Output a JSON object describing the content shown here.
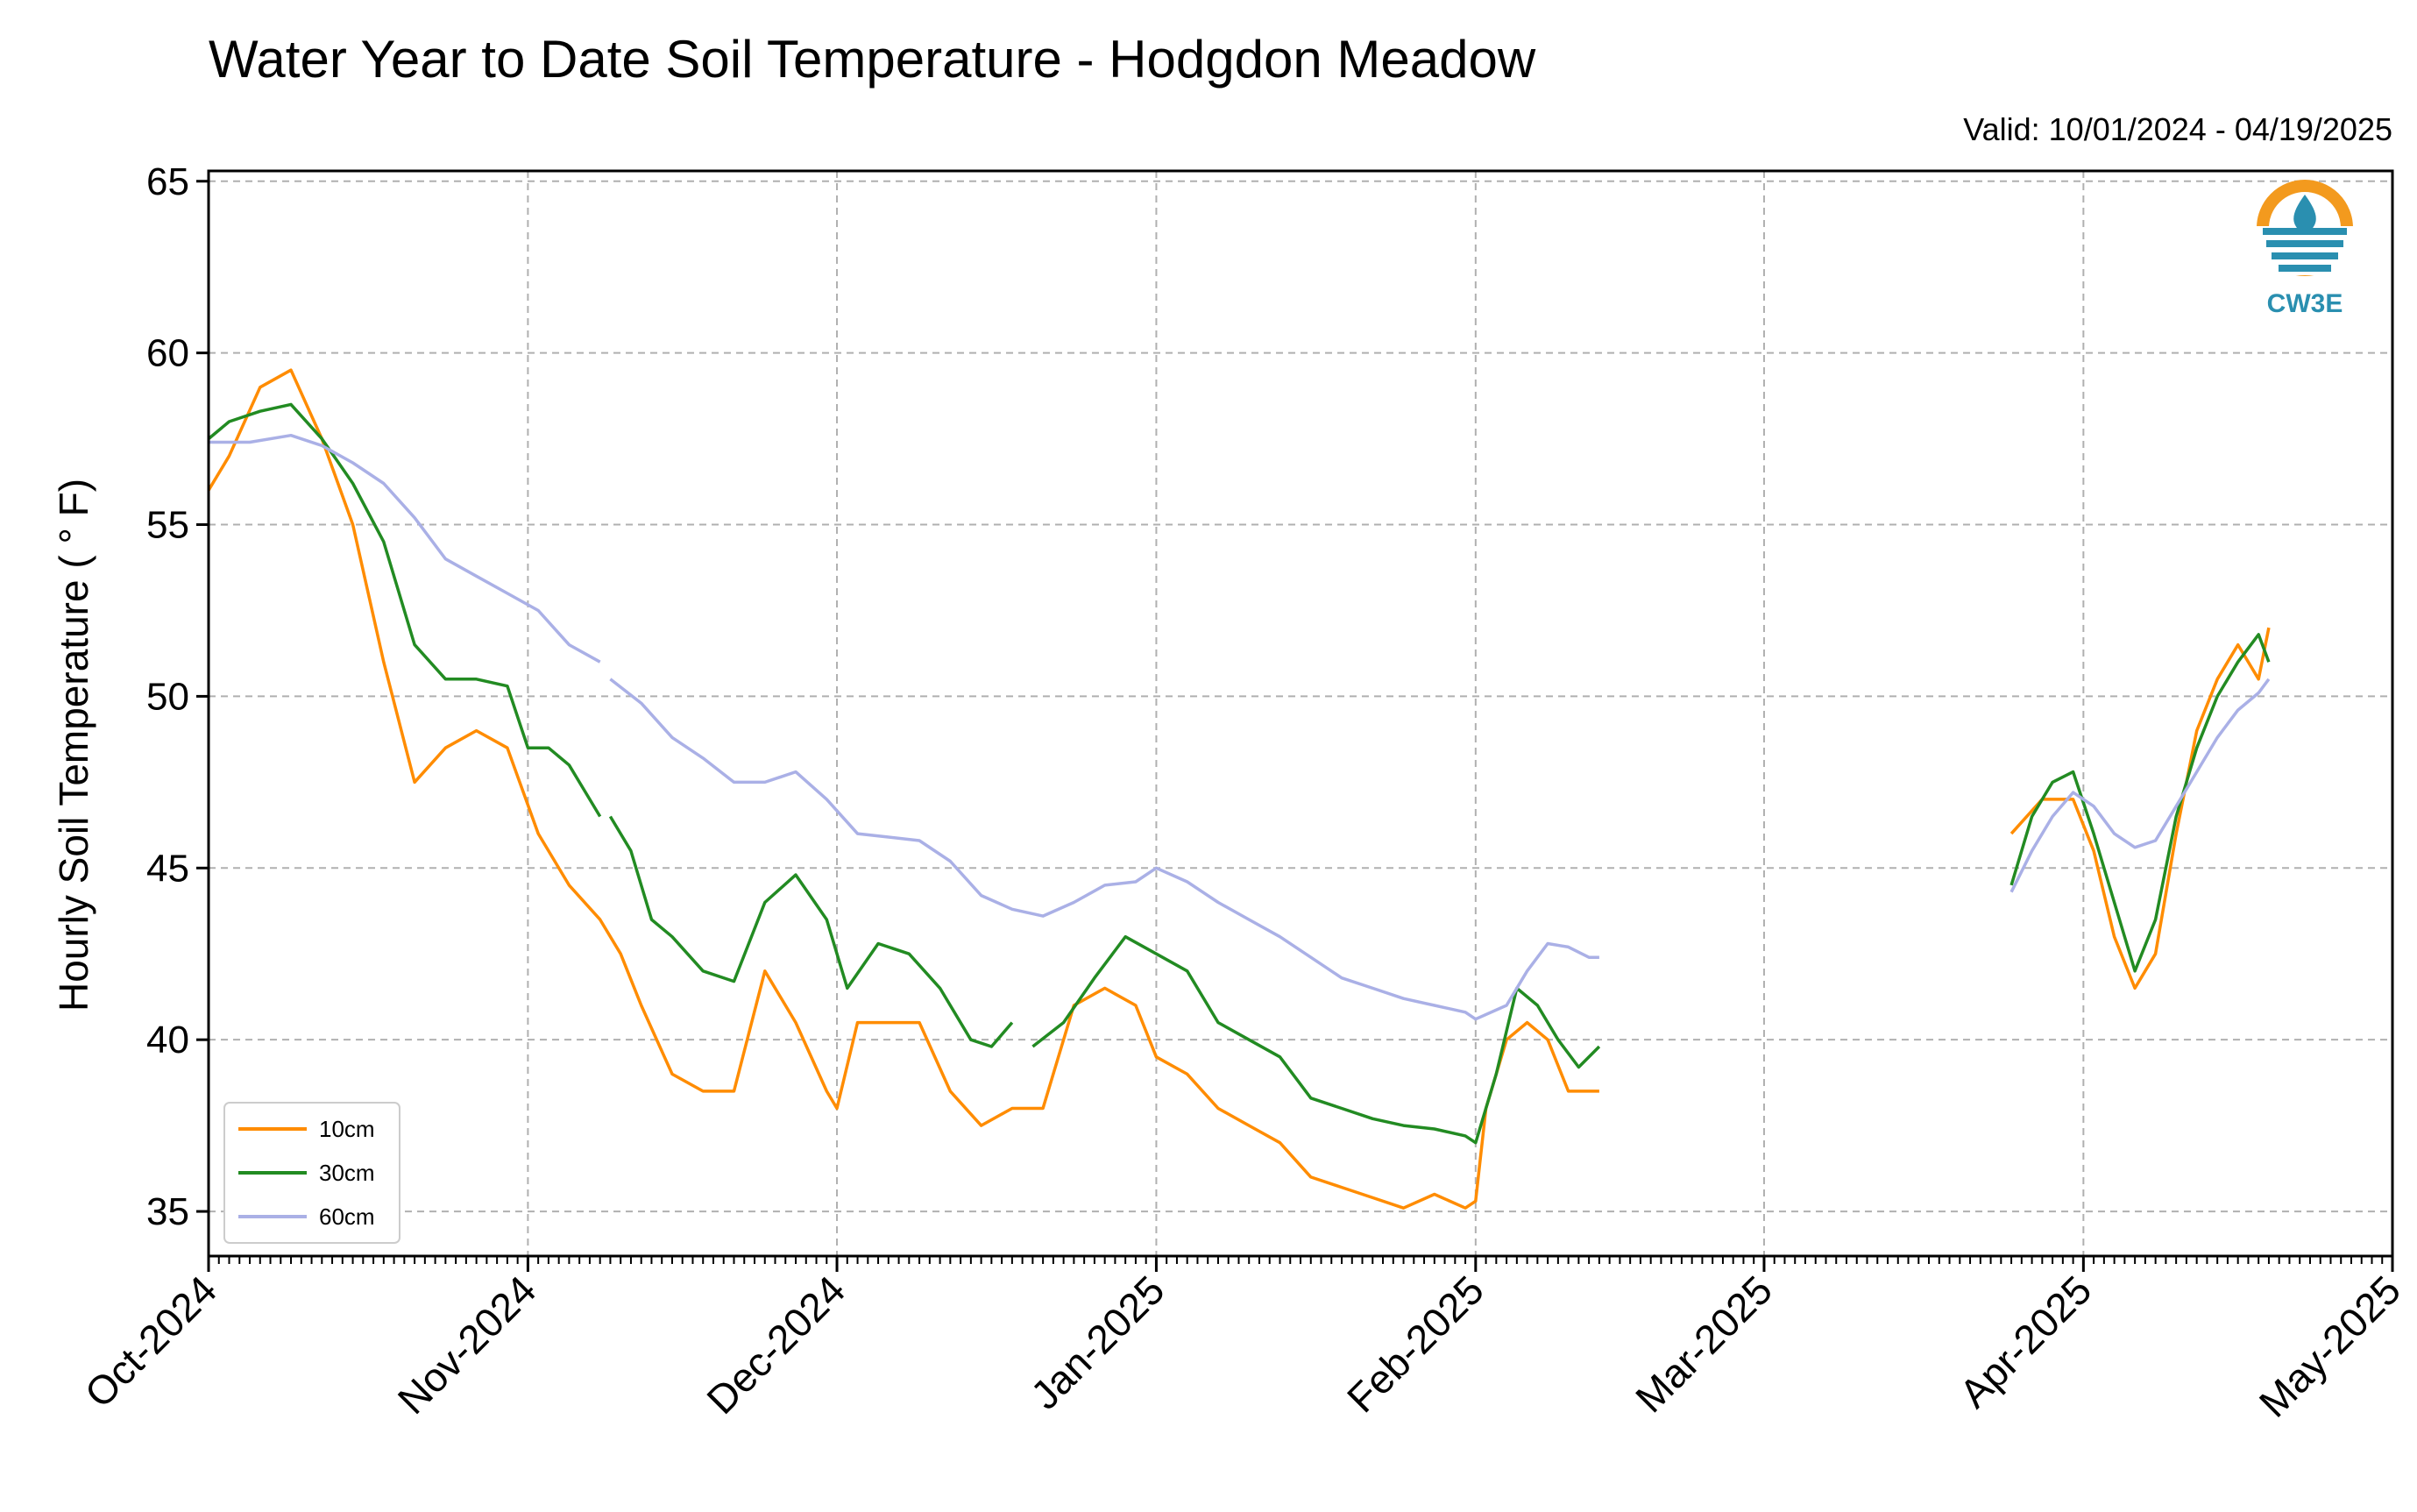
{
  "chart_data": {
    "type": "line",
    "title": "Water Year to Date Soil Temperature - Hodgdon Meadow",
    "subtitle": "Valid: 10/01/2024 - 04/19/2025",
    "ylabel": "Hourly Soil Temperature ( ° F)",
    "xlabel": "",
    "ylim": [
      33.7,
      65.3
    ],
    "xlim": [
      "2024-10-01",
      "2025-05-01"
    ],
    "yticks": [
      35,
      40,
      45,
      50,
      55,
      60,
      65
    ],
    "xticks": [
      {
        "date": "2024-10-01",
        "label": "Oct-2024"
      },
      {
        "date": "2024-11-01",
        "label": "Nov-2024"
      },
      {
        "date": "2024-12-01",
        "label": "Dec-2024"
      },
      {
        "date": "2025-01-01",
        "label": "Jan-2025"
      },
      {
        "date": "2025-02-01",
        "label": "Feb-2025"
      },
      {
        "date": "2025-03-01",
        "label": "Mar-2025"
      },
      {
        "date": "2025-04-01",
        "label": "Apr-2025"
      },
      {
        "date": "2025-05-01",
        "label": "May-2025"
      }
    ],
    "grid": true,
    "legend_position": "lower-left",
    "series": [
      {
        "name": "10cm",
        "color": "#ff8c00",
        "points": [
          [
            "2024-10-01",
            56
          ],
          [
            "2024-10-03",
            57
          ],
          [
            "2024-10-06",
            59
          ],
          [
            "2024-10-09",
            59.5
          ],
          [
            "2024-10-12",
            57.5
          ],
          [
            "2024-10-15",
            55
          ],
          [
            "2024-10-18",
            51
          ],
          [
            "2024-10-21",
            47.5
          ],
          [
            "2024-10-24",
            48.5
          ],
          [
            "2024-10-27",
            49
          ],
          [
            "2024-10-30",
            48.5
          ],
          [
            "2024-11-02",
            46
          ],
          [
            "2024-11-05",
            44.5
          ],
          [
            "2024-11-08",
            43.5
          ],
          [
            "2024-11-10",
            42.5
          ],
          [
            "2024-11-12",
            41
          ],
          [
            "2024-11-15",
            39
          ],
          [
            "2024-11-18",
            38.5
          ],
          [
            "2024-11-21",
            38.5
          ],
          [
            "2024-11-24",
            42
          ],
          [
            "2024-11-27",
            40.5
          ],
          [
            "2024-11-30",
            38.5
          ],
          [
            "2024-12-01",
            38
          ],
          [
            "2024-12-03",
            40.5
          ],
          [
            "2024-12-06",
            40.5
          ],
          [
            "2024-12-09",
            40.5
          ],
          [
            "2024-12-12",
            38.5
          ],
          [
            "2024-12-15",
            37.5
          ],
          [
            "2024-12-18",
            38
          ],
          [
            "2024-12-21",
            38
          ],
          [
            "2024-12-24",
            41
          ],
          [
            "2024-12-27",
            41.5
          ],
          [
            "2024-12-30",
            41
          ],
          [
            "2025-01-01",
            39.5
          ],
          [
            "2025-01-04",
            39
          ],
          [
            "2025-01-07",
            38
          ],
          [
            "2025-01-10",
            37.5
          ],
          [
            "2025-01-13",
            37
          ],
          [
            "2025-01-16",
            36
          ],
          [
            "2025-01-19",
            35.7
          ],
          [
            "2025-01-22",
            35.4
          ],
          [
            "2025-01-25",
            35.1
          ],
          [
            "2025-01-28",
            35.5
          ],
          [
            "2025-01-31",
            35.1
          ],
          [
            "2025-02-01",
            35.3
          ],
          [
            "2025-02-02",
            38
          ],
          [
            "2025-02-04",
            40
          ],
          [
            "2025-02-06",
            40.5
          ],
          [
            "2025-02-08",
            40
          ],
          [
            "2025-02-10",
            38.5
          ],
          [
            "2025-02-12",
            38.5
          ],
          [
            "2025-02-13",
            38.5
          ],
          null,
          [
            "2025-03-25",
            46
          ],
          [
            "2025-03-28",
            47
          ],
          [
            "2025-03-31",
            47
          ],
          [
            "2025-04-02",
            45.5
          ],
          [
            "2025-04-04",
            43
          ],
          [
            "2025-04-06",
            41.5
          ],
          [
            "2025-04-08",
            42.5
          ],
          [
            "2025-04-10",
            46
          ],
          [
            "2025-04-12",
            49
          ],
          [
            "2025-04-14",
            50.5
          ],
          [
            "2025-04-16",
            51.5
          ],
          [
            "2025-04-18",
            50.5
          ],
          [
            "2025-04-19",
            52
          ]
        ]
      },
      {
        "name": "30cm",
        "color": "#228b22",
        "points": [
          [
            "2024-10-01",
            57.5
          ],
          [
            "2024-10-03",
            58
          ],
          [
            "2024-10-06",
            58.3
          ],
          [
            "2024-10-09",
            58.5
          ],
          [
            "2024-10-12",
            57.5
          ],
          [
            "2024-10-15",
            56.2
          ],
          [
            "2024-10-18",
            54.5
          ],
          [
            "2024-10-21",
            51.5
          ],
          [
            "2024-10-24",
            50.5
          ],
          [
            "2024-10-27",
            50.5
          ],
          [
            "2024-10-30",
            50.3
          ],
          [
            "2024-11-01",
            48.5
          ],
          [
            "2024-11-03",
            48.5
          ],
          [
            "2024-11-05",
            48
          ],
          [
            "2024-11-07",
            47
          ],
          [
            "2024-11-08",
            46.5
          ],
          null,
          [
            "2024-11-09",
            46.5
          ],
          [
            "2024-11-11",
            45.5
          ],
          [
            "2024-11-13",
            43.5
          ],
          [
            "2024-11-15",
            43
          ],
          [
            "2024-11-18",
            42
          ],
          [
            "2024-11-21",
            41.7
          ],
          [
            "2024-11-24",
            44
          ],
          [
            "2024-11-27",
            44.8
          ],
          [
            "2024-11-30",
            43.5
          ],
          [
            "2024-12-02",
            41.5
          ],
          [
            "2024-12-05",
            42.8
          ],
          [
            "2024-12-08",
            42.5
          ],
          [
            "2024-12-11",
            41.5
          ],
          [
            "2024-12-14",
            40
          ],
          [
            "2024-12-16",
            39.8
          ],
          [
            "2024-12-18",
            40.5
          ],
          null,
          [
            "2024-12-20",
            39.8
          ],
          [
            "2024-12-23",
            40.5
          ],
          [
            "2024-12-26",
            41.8
          ],
          [
            "2024-12-29",
            43
          ],
          [
            "2025-01-01",
            42.5
          ],
          [
            "2025-01-04",
            42
          ],
          [
            "2025-01-07",
            40.5
          ],
          [
            "2025-01-10",
            40
          ],
          [
            "2025-01-13",
            39.5
          ],
          [
            "2025-01-16",
            38.3
          ],
          [
            "2025-01-19",
            38
          ],
          [
            "2025-01-22",
            37.7
          ],
          [
            "2025-01-25",
            37.5
          ],
          [
            "2025-01-28",
            37.4
          ],
          [
            "2025-01-31",
            37.2
          ],
          [
            "2025-02-01",
            37
          ],
          [
            "2025-02-03",
            39
          ],
          [
            "2025-02-05",
            41.5
          ],
          [
            "2025-02-07",
            41
          ],
          [
            "2025-02-09",
            40
          ],
          [
            "2025-02-11",
            39.2
          ],
          [
            "2025-02-13",
            39.8
          ],
          null,
          [
            "2025-03-25",
            44.5
          ],
          [
            "2025-03-27",
            46.5
          ],
          [
            "2025-03-29",
            47.5
          ],
          [
            "2025-03-31",
            47.8
          ],
          [
            "2025-04-02",
            46
          ],
          [
            "2025-04-04",
            44
          ],
          [
            "2025-04-06",
            42
          ],
          [
            "2025-04-08",
            43.5
          ],
          [
            "2025-04-10",
            46.5
          ],
          [
            "2025-04-12",
            48.5
          ],
          [
            "2025-04-14",
            50
          ],
          [
            "2025-04-16",
            51
          ],
          [
            "2025-04-18",
            51.8
          ],
          [
            "2025-04-19",
            51
          ]
        ]
      },
      {
        "name": "60cm",
        "color": "#aab0e6",
        "points": [
          [
            "2024-10-01",
            57.4
          ],
          [
            "2024-10-05",
            57.4
          ],
          [
            "2024-10-09",
            57.6
          ],
          [
            "2024-10-12",
            57.3
          ],
          [
            "2024-10-15",
            56.8
          ],
          [
            "2024-10-18",
            56.2
          ],
          [
            "2024-10-21",
            55.2
          ],
          [
            "2024-10-24",
            54
          ],
          [
            "2024-10-27",
            53.5
          ],
          [
            "2024-10-30",
            53
          ],
          [
            "2024-11-02",
            52.5
          ],
          [
            "2024-11-05",
            51.5
          ],
          [
            "2024-11-08",
            51
          ],
          null,
          [
            "2024-11-09",
            50.5
          ],
          [
            "2024-11-12",
            49.8
          ],
          [
            "2024-11-15",
            48.8
          ],
          [
            "2024-11-18",
            48.2
          ],
          [
            "2024-11-21",
            47.5
          ],
          [
            "2024-11-24",
            47.5
          ],
          [
            "2024-11-27",
            47.8
          ],
          [
            "2024-11-30",
            47
          ],
          [
            "2024-12-03",
            46
          ],
          [
            "2024-12-06",
            45.9
          ],
          [
            "2024-12-09",
            45.8
          ],
          [
            "2024-12-12",
            45.2
          ],
          [
            "2024-12-15",
            44.2
          ],
          [
            "2024-12-18",
            43.8
          ],
          [
            "2024-12-21",
            43.6
          ],
          [
            "2024-12-24",
            44
          ],
          [
            "2024-12-27",
            44.5
          ],
          [
            "2024-12-30",
            44.6
          ],
          [
            "2025-01-01",
            45
          ],
          [
            "2025-01-04",
            44.6
          ],
          [
            "2025-01-07",
            44
          ],
          [
            "2025-01-10",
            43.5
          ],
          [
            "2025-01-13",
            43
          ],
          [
            "2025-01-16",
            42.4
          ],
          [
            "2025-01-19",
            41.8
          ],
          [
            "2025-01-22",
            41.5
          ],
          [
            "2025-01-25",
            41.2
          ],
          [
            "2025-01-28",
            41
          ],
          [
            "2025-01-31",
            40.8
          ],
          [
            "2025-02-01",
            40.6
          ],
          [
            "2025-02-04",
            41
          ],
          [
            "2025-02-06",
            42
          ],
          [
            "2025-02-08",
            42.8
          ],
          [
            "2025-02-10",
            42.7
          ],
          [
            "2025-02-12",
            42.4
          ],
          [
            "2025-02-13",
            42.4
          ],
          null,
          [
            "2025-03-25",
            44.3
          ],
          [
            "2025-03-27",
            45.5
          ],
          [
            "2025-03-29",
            46.5
          ],
          [
            "2025-03-31",
            47.2
          ],
          [
            "2025-04-02",
            46.8
          ],
          [
            "2025-04-04",
            46
          ],
          [
            "2025-04-06",
            45.6
          ],
          [
            "2025-04-08",
            45.8
          ],
          [
            "2025-04-10",
            46.8
          ],
          [
            "2025-04-12",
            47.8
          ],
          [
            "2025-04-14",
            48.8
          ],
          [
            "2025-04-16",
            49.6
          ],
          [
            "2025-04-18",
            50.1
          ],
          [
            "2025-04-19",
            50.5
          ]
        ]
      }
    ]
  },
  "logo": {
    "label": "CW3E",
    "icon": "water-drop-icon"
  }
}
